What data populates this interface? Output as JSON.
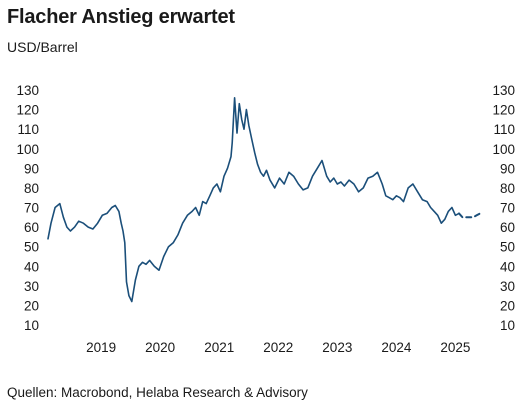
{
  "title": "Flacher Anstieg erwartet",
  "subtitle": "USD/Barrel",
  "source": "Quellen: Macrobond, Helaba Research & Advisory",
  "colors": {
    "line": "#1b4f7a",
    "text": "#1a1a1a"
  },
  "chart_data": {
    "type": "line",
    "title": "Flacher Anstieg erwartet",
    "ylabel": "USD/Barrel",
    "xlim": [
      2018.6,
      2025.95
    ],
    "ylim": [
      10,
      130
    ],
    "yticks": [
      10,
      20,
      30,
      40,
      50,
      60,
      70,
      80,
      90,
      100,
      110,
      120,
      130
    ],
    "xticks": [
      "2019",
      "2020",
      "2021",
      "2022",
      "2023",
      "2024",
      "2025"
    ],
    "grid": false,
    "y_axis_both_sides": true,
    "series": [
      {
        "style": "solid",
        "x": [
          2018.6,
          2018.65,
          2018.72,
          2018.8,
          2018.86,
          2018.92,
          2018.98,
          2019.05,
          2019.12,
          2019.2,
          2019.28,
          2019.36,
          2019.44,
          2019.52,
          2019.6,
          2019.68,
          2019.74,
          2019.8,
          2019.84,
          2019.87,
          2019.9,
          2019.93,
          2019.97,
          2020.02,
          2020.08,
          2020.14,
          2020.2,
          2020.26,
          2020.32,
          2020.4,
          2020.48,
          2020.56,
          2020.64,
          2020.72,
          2020.8,
          2020.88,
          2020.96,
          2021.04,
          2021.1,
          2021.16,
          2021.22,
          2021.28,
          2021.34,
          2021.4,
          2021.46,
          2021.52,
          2021.58,
          2021.64,
          2021.7,
          2021.72,
          2021.76,
          2021.8,
          2021.84,
          2021.88,
          2021.92,
          2021.96,
          2022.0,
          2022.05,
          2022.1,
          2022.15,
          2022.2,
          2022.25,
          2022.3,
          2022.36,
          2022.44,
          2022.52,
          2022.6,
          2022.68,
          2022.76,
          2022.84,
          2022.92,
          2023.0,
          2023.08,
          2023.16,
          2023.24,
          2023.32,
          2023.38,
          2023.44,
          2023.5,
          2023.56,
          2023.62,
          2023.7,
          2023.78,
          2023.86,
          2023.94,
          2024.02,
          2024.1,
          2024.18,
          2024.26,
          2024.32,
          2024.38,
          2024.44,
          2024.5,
          2024.56,
          2024.62,
          2024.7,
          2024.78,
          2024.86,
          2024.94,
          2025.02,
          2025.08,
          2025.14,
          2025.2,
          2025.26,
          2025.32,
          2025.38,
          2025.44,
          2025.5,
          2025.56
        ],
        "values": [
          54,
          62,
          70,
          72,
          65,
          60,
          58,
          60,
          63,
          62,
          60,
          59,
          62,
          66,
          67,
          70,
          71,
          68,
          62,
          58,
          52,
          32,
          25,
          22,
          33,
          40,
          42,
          41,
          43,
          40,
          38,
          45,
          50,
          52,
          56,
          62,
          66,
          68,
          70,
          66,
          73,
          72,
          76,
          80,
          82,
          78,
          86,
          90,
          96,
          103,
          126,
          108,
          123,
          115,
          110,
          120,
          112,
          105,
          98,
          92,
          88,
          86,
          89,
          84,
          80,
          85,
          82,
          88,
          86,
          82,
          79,
          80,
          86,
          90,
          94,
          86,
          83,
          85,
          82,
          83,
          81,
          84,
          82,
          78,
          80,
          85,
          86,
          88,
          82,
          76,
          75,
          74,
          76,
          75,
          73,
          80,
          82,
          78,
          74,
          73,
          70,
          68,
          66,
          62,
          64,
          68,
          70,
          66,
          67
        ]
      },
      {
        "style": "dashed",
        "x": [
          2025.56,
          2025.62,
          2025.68,
          2025.74,
          2025.8,
          2025.86,
          2025.92,
          2025.95
        ],
        "values": [
          67,
          65,
          65,
          65,
          65,
          66,
          67,
          68
        ]
      }
    ]
  }
}
